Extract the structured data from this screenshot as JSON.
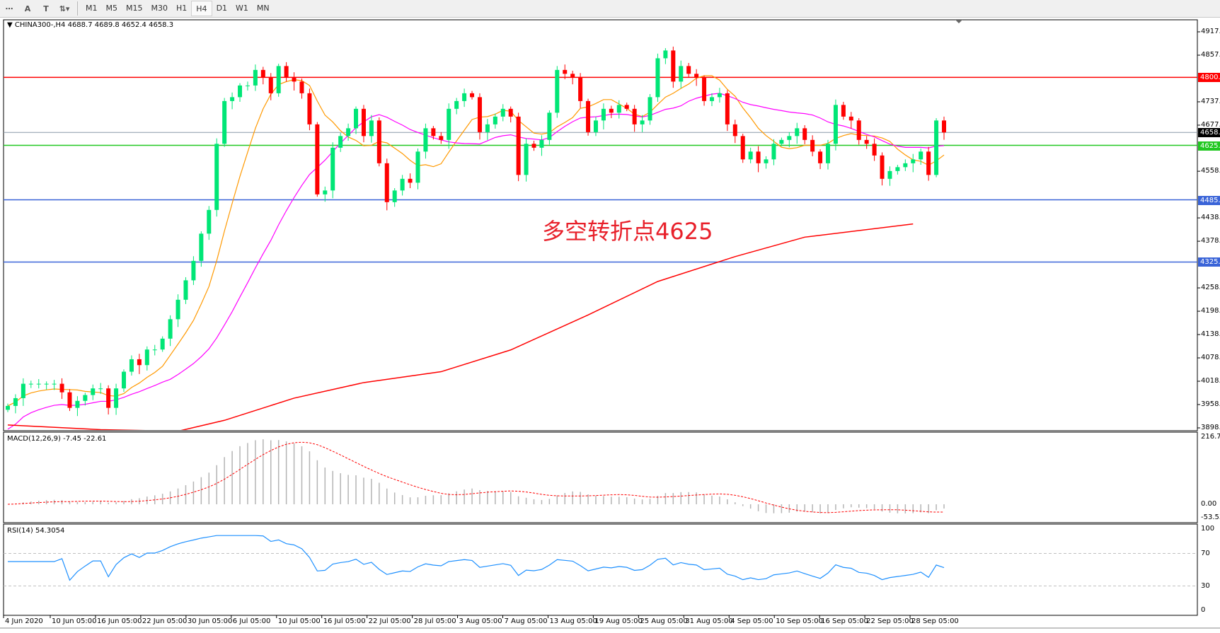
{
  "toolbar": {
    "icons": [
      "grid-icon",
      "text-a-icon",
      "text-box-icon",
      "arrows-icon"
    ],
    "timeframes": [
      "M1",
      "M5",
      "M15",
      "M30",
      "H1",
      "H4",
      "D1",
      "W1",
      "MN"
    ],
    "active": "H4"
  },
  "header": {
    "symbol_info": "CHINA300-,H4  4688.7 4689.8 4652.4 4658.3"
  },
  "annotation": "多空转折点4625",
  "macd": {
    "label": "MACD(12,26,9) -7.45 -22.61",
    "axis": [
      "216.78",
      "0.00",
      "-53.53"
    ]
  },
  "rsi": {
    "label": "RSI(14) 54.3054",
    "axis": [
      "100",
      "70",
      "30",
      "0"
    ]
  },
  "price_axis": [
    "4917.0",
    "4857.0",
    "4737.0",
    "4677.0",
    "4558.5",
    "4438.5",
    "4378.5",
    "4258.5",
    "4198.5",
    "4138.5",
    "4078.5",
    "4018.5",
    "3958.5",
    "3898.5"
  ],
  "lines": [
    {
      "price": 4800.0,
      "label": "4800.0",
      "color": "#ff0000"
    },
    {
      "price": 4658.3,
      "label": "4658.3",
      "color": "#000000",
      "line": "#8a9aa8"
    },
    {
      "price": 4625.0,
      "label": "4625.0",
      "color": "#22c822"
    },
    {
      "price": 4485.0,
      "label": "4485.0",
      "color": "#3a64d8"
    },
    {
      "price": 4325.0,
      "label": "4325.0",
      "color": "#3a64d8"
    }
  ],
  "dates": [
    "4 Jun 2020",
    "10 Jun 05:00",
    "16 Jun 05:00",
    "22 Jun 05:00",
    "30 Jun 05:00",
    "6 Jul 05:00",
    "10 Jul 05:00",
    "16 Jul 05:00",
    "22 Jul 05:00",
    "28 Jul 05:00",
    "3 Aug 05:00",
    "7 Aug 05:00",
    "13 Aug 05:00",
    "19 Aug 05:00",
    "25 Aug 05:00",
    "31 Aug 05:00",
    "4 Sep 05:00",
    "10 Sep 05:00",
    "16 Sep 05:00",
    "22 Sep 05:00",
    "28 Sep 05:00"
  ],
  "chart_data": {
    "type": "candlestick",
    "ylim": [
      3898.5,
      4917.0
    ],
    "colors": {
      "up": "#00e676",
      "down": "#ff0000",
      "ma_fast": "#ff9900",
      "ma_mid": "#ff00ff",
      "ma_slow": "#ff0000"
    },
    "closes": [
      3955,
      3975,
      4012,
      4012,
      4012,
      4012,
      4012,
      3990,
      3950,
      3968,
      3983,
      4000,
      4000,
      3950,
      4000,
      4043,
      4075,
      4060,
      4100,
      4100,
      4128,
      4178,
      4228,
      4278,
      4328,
      4398,
      4459,
      4629,
      4739,
      4749,
      4779,
      4779,
      4819,
      4799,
      4759,
      4829,
      4799,
      4789,
      4759,
      4679,
      4499,
      4509,
      4619,
      4649,
      4669,
      4719,
      4649,
      4689,
      4579,
      4479,
      4509,
      4539,
      4529,
      4609,
      4669,
      4649,
      4639,
      4719,
      4739,
      4759,
      4749,
      4659,
      4679,
      4699,
      4719,
      4699,
      4549,
      4629,
      4619,
      4639,
      4709,
      4819,
      4809,
      4799,
      4739,
      4659,
      4689,
      4719,
      4709,
      4729,
      4719,
      4679,
      4689,
      4749,
      4849,
      4869,
      4789,
      4829,
      4809,
      4799,
      4739,
      4749,
      4759,
      4679,
      4649,
      4589,
      4609,
      4579,
      4589,
      4629,
      4639,
      4649,
      4669,
      4639,
      4609,
      4579,
      4629,
      4729,
      4699,
      4689,
      4639,
      4629,
      4599,
      4539,
      4559,
      4569,
      4579,
      4589,
      4609,
      4549,
      4689,
      4658.3
    ],
    "ma_slow": [
      [
        0,
        3906
      ],
      [
        12,
        3894
      ],
      [
        22,
        3890
      ],
      [
        28,
        3918
      ],
      [
        37,
        3975
      ],
      [
        46,
        4015
      ],
      [
        56,
        4043
      ],
      [
        65,
        4099
      ],
      [
        75,
        4189
      ],
      [
        84,
        4275
      ],
      [
        94,
        4339
      ],
      [
        103,
        4389
      ],
      [
        117,
        4423
      ]
    ]
  }
}
